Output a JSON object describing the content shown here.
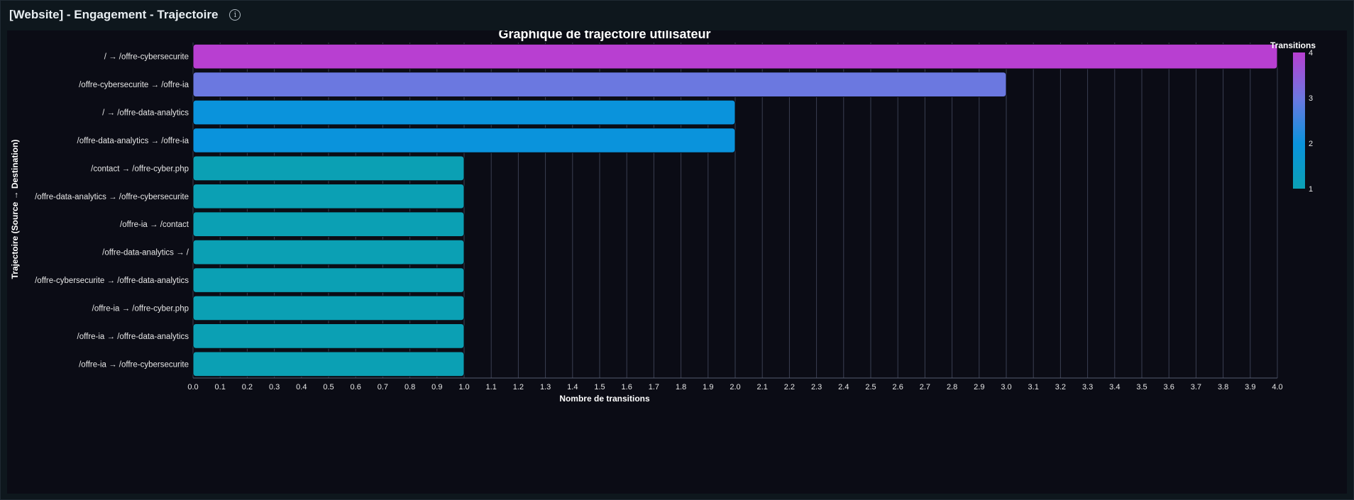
{
  "panel": {
    "title": "[Website] - Engagement - Trajectoire",
    "info_icon": "info-circle-icon"
  },
  "colors": {
    "background": "#0b0c15",
    "grid": "#3a3f52",
    "text": "#e6e6e6",
    "colorscale": [
      "#0ba0b4",
      "#0a93dc",
      "#6b78e0",
      "#b83fd1"
    ]
  },
  "chart_data": {
    "type": "bar",
    "orientation": "horizontal",
    "title": "Graphique de trajectoire utilisateur",
    "xlabel": "Nombre de transitions",
    "ylabel": "Trajectoire (Source → Destination)",
    "xlim": [
      0,
      4
    ],
    "x_ticks": [
      "0.0",
      "0.1",
      "0.2",
      "0.3",
      "0.4",
      "0.5",
      "0.6",
      "0.7",
      "0.8",
      "0.9",
      "1.0",
      "1.1",
      "1.2",
      "1.3",
      "1.4",
      "1.5",
      "1.6",
      "1.7",
      "1.8",
      "1.9",
      "2.0",
      "2.1",
      "2.2",
      "2.3",
      "2.4",
      "2.5",
      "2.6",
      "2.7",
      "2.8",
      "2.9",
      "3.0",
      "3.1",
      "3.2",
      "3.3",
      "3.4",
      "3.5",
      "3.6",
      "3.7",
      "3.8",
      "3.9",
      "4.0"
    ],
    "grid": true,
    "categories": [
      "/ → /offre-cybersecurite",
      "/offre-cybersecurite → /offre-ia",
      "/ → /offre-data-analytics",
      "/offre-data-analytics → /offre-ia",
      "/contact → /offre-cyber.php",
      "/offre-data-analytics → /offre-cybersecurite",
      "/offre-ia → /contact",
      "/offre-data-analytics → /",
      "/offre-cybersecurite → /offre-data-analytics",
      "/offre-ia → /offre-cyber.php",
      "/offre-ia → /offre-data-analytics",
      "/offre-ia → /offre-cybersecurite"
    ],
    "values": [
      4,
      3,
      2,
      2,
      1,
      1,
      1,
      1,
      1,
      1,
      1,
      1
    ],
    "colorbar": {
      "title": "Transitions",
      "range": [
        1,
        4
      ],
      "ticks": [
        "1",
        "2",
        "3",
        "4"
      ],
      "placement": "right"
    }
  }
}
